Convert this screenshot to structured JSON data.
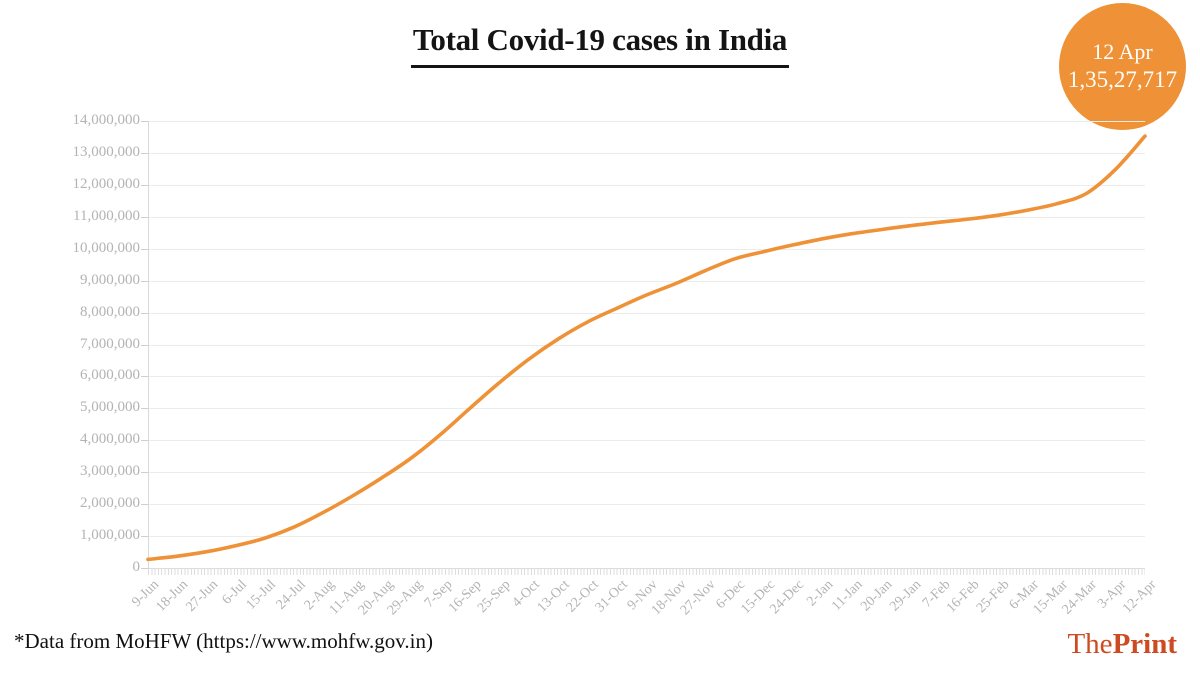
{
  "title": "Total Covid-19 cases in India",
  "badge": {
    "date": "12 Apr",
    "value": "1,35,27,717"
  },
  "footer": {
    "source_note": "*Data from MoHFW (https://www.mohfw.gov.in)",
    "brand_the": "The",
    "brand_print": "Print"
  },
  "colors": {
    "line": "#EF9136",
    "badge_fill": "#EF9136",
    "badge_text": "#ffffff",
    "brand": "#CE4A21",
    "grid": "#ececec",
    "tick_label": "#b3b3b3",
    "title_text": "#141414"
  },
  "chart_data": {
    "type": "line",
    "title": "Total Covid-19 cases in India",
    "xlabel": "",
    "ylabel": "",
    "ylim": [
      0,
      14000000
    ],
    "ytick_step": 1000000,
    "grid": "horizontal-only",
    "legend": "none",
    "line_color": "#EF9136",
    "categories": [
      "9-Jun",
      "18-Jun",
      "27-Jun",
      "6-Jul",
      "15-Jul",
      "24-Jul",
      "2-Aug",
      "11-Aug",
      "20-Aug",
      "29-Aug",
      "7-Sep",
      "16-Sep",
      "25-Sep",
      "4-Oct",
      "13-Oct",
      "22-Oct",
      "31-Oct",
      "9-Nov",
      "18-Nov",
      "27-Nov",
      "6-Dec",
      "15-Dec",
      "24-Dec",
      "2-Jan",
      "11-Jan",
      "20-Jan",
      "29-Jan",
      "7-Feb",
      "16-Feb",
      "25-Feb",
      "6-Mar",
      "15-Mar",
      "24-Mar",
      "3-Apr",
      "12-Apr"
    ],
    "values": [
      270000,
      370000,
      510000,
      700000,
      940000,
      1290000,
      1750000,
      2270000,
      2840000,
      3460000,
      4200000,
      5020000,
      5820000,
      6550000,
      7180000,
      7710000,
      8140000,
      8550000,
      8910000,
      9310000,
      9680000,
      9910000,
      10120000,
      10310000,
      10470000,
      10600000,
      10720000,
      10830000,
      10930000,
      11050000,
      11210000,
      11410000,
      11730000,
      12490000,
      13527717
    ],
    "annotation": {
      "label": "12 Apr",
      "value": 13527717,
      "value_display": "1,35,27,717"
    }
  }
}
